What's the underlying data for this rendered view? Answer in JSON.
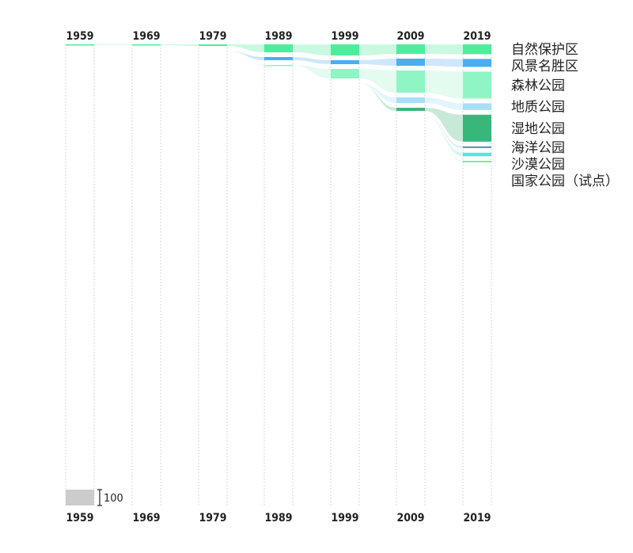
{
  "chart_data": {
    "type": "sankey-stacked-bar",
    "title": "",
    "years": [
      "1959",
      "1969",
      "1979",
      "1989",
      "1999",
      "2009",
      "2019"
    ],
    "categories": [
      {
        "name": "自然保护区",
        "color": "#4cee9c",
        "flow_color": "#c8f8df",
        "values": [
          4,
          4,
          10,
          50,
          70,
          60,
          62
        ]
      },
      {
        "name": "风景名胜区",
        "color": "#4aaef2",
        "flow_color": "#cce6fb",
        "values": [
          0,
          0,
          0,
          20,
          25,
          45,
          50
        ]
      },
      {
        "name": "森林公园",
        "color": "#8ff5c4",
        "flow_color": "#e3fbef",
        "values": [
          0,
          0,
          0,
          2,
          60,
          140,
          170
        ]
      },
      {
        "name": "地质公园",
        "color": "#a8def8",
        "flow_color": "#e2f3fc",
        "values": [
          0,
          0,
          0,
          0,
          0,
          35,
          42
        ]
      },
      {
        "name": "湿地公园",
        "color": "#38b77a",
        "flow_color": "#c4e8d6",
        "values": [
          0,
          0,
          0,
          0,
          0,
          20,
          170
        ]
      },
      {
        "name": "海洋公园",
        "color": "#4a8fb5",
        "flow_color": "#d3e6f0",
        "values": [
          0,
          0,
          0,
          0,
          0,
          0,
          10
        ]
      },
      {
        "name": "沙漠公园",
        "color": "#4de8dc",
        "flow_color": "#d3f8f5",
        "values": [
          0,
          0,
          0,
          0,
          0,
          0,
          22
        ]
      },
      {
        "name": "国家公园（试点）",
        "color": "#55e07a",
        "flow_color": "#d5f7de",
        "values": [
          0,
          0,
          0,
          0,
          0,
          0,
          4
        ]
      }
    ],
    "scale": {
      "value": 100,
      "label": "100"
    }
  }
}
